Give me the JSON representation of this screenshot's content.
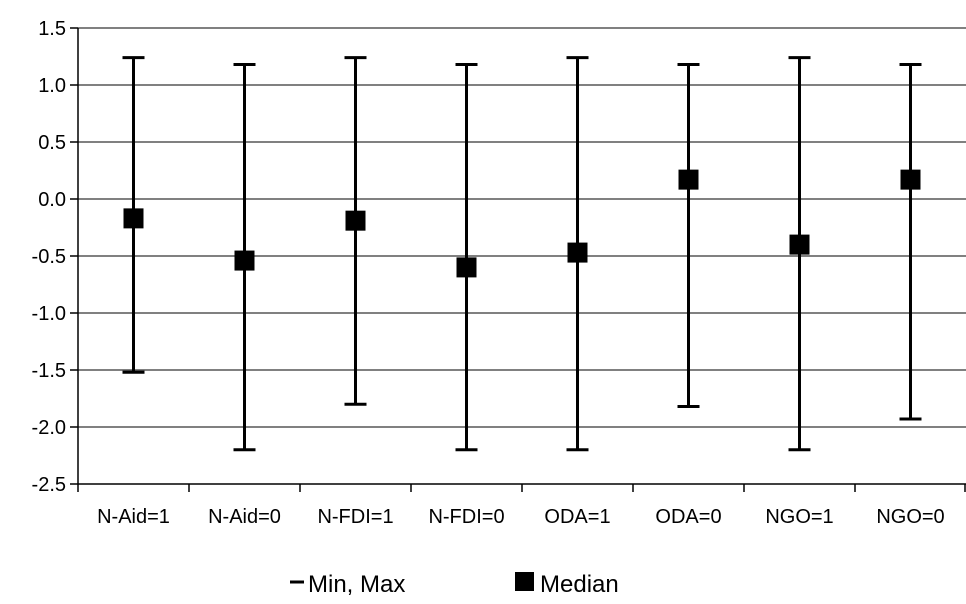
{
  "chart_data": {
    "type": "scatter",
    "title": "",
    "xlabel": "",
    "ylabel": "",
    "categories": [
      "N-Aid=1",
      "N-Aid=0",
      "N-FDI=1",
      "N-FDI=0",
      "ODA=1",
      "ODA=0",
      "NGO=1",
      "NGO=0"
    ],
    "ylim": [
      -2.5,
      1.5
    ],
    "yticks": [
      1.5,
      1.0,
      0.5,
      0.0,
      -0.5,
      -1.0,
      -1.5,
      -2.0,
      -2.5
    ],
    "ytick_labels": [
      "1.5",
      "1.0",
      "0.5",
      "0.0",
      "-0.5",
      "-1.0",
      "-1.5",
      "-2.0",
      "-2.5"
    ],
    "grid": true,
    "legend_position": "bottom",
    "series": [
      {
        "name": "Min, Max",
        "marker": "range-bar",
        "min": [
          -1.52,
          -2.2,
          -1.8,
          -2.2,
          -2.2,
          -1.82,
          -2.2,
          -1.93
        ],
        "max": [
          1.24,
          1.18,
          1.24,
          1.18,
          1.24,
          1.18,
          1.24,
          1.18
        ]
      },
      {
        "name": "Median",
        "marker": "square",
        "values": [
          -0.17,
          -0.54,
          -0.19,
          -0.6,
          -0.47,
          0.17,
          -0.4,
          0.17
        ]
      }
    ],
    "colors": {
      "marks": "#000000",
      "grid": "#000000",
      "background": "#ffffff"
    }
  }
}
